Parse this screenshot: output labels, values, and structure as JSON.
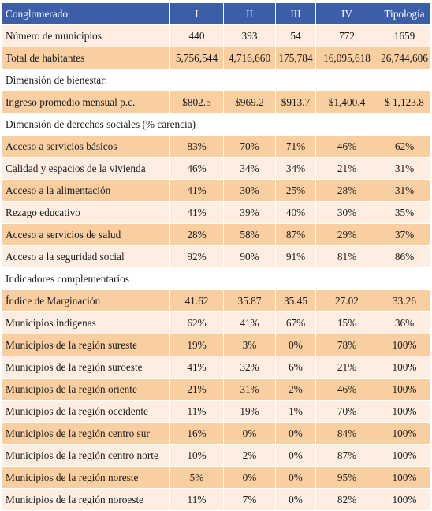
{
  "header": [
    "Conglomerado",
    "I",
    "II",
    "III",
    "IV",
    "Tipología"
  ],
  "rows": [
    {
      "kind": "light",
      "cells": [
        "Número de municipios",
        "440",
        "393",
        "54",
        "772",
        "1659"
      ]
    },
    {
      "kind": "dark",
      "cells": [
        "Total de habitantes",
        "5,756,544",
        "4,716,660",
        "175,784",
        "16,095,618",
        "26,744,606"
      ]
    },
    {
      "kind": "section",
      "cells": [
        "Dimensión de bienestar:"
      ]
    },
    {
      "kind": "dark",
      "cells": [
        "Ingreso promedio mensual p.c.",
        "$802.5",
        "$969.2",
        "$913.7",
        "$1,400.4",
        "$ 1,123.8"
      ]
    },
    {
      "kind": "section",
      "cells": [
        "Dimensión de derechos sociales (% carencia)"
      ]
    },
    {
      "kind": "dark",
      "cells": [
        "Acceso a servicios básicos",
        "83%",
        "70%",
        "71%",
        "46%",
        "62%"
      ]
    },
    {
      "kind": "light",
      "cells": [
        "Calidad y espacios de la vivienda",
        "46%",
        "34%",
        "34%",
        "21%",
        "31%"
      ]
    },
    {
      "kind": "dark",
      "cells": [
        "Acceso a la alimentación",
        "41%",
        "30%",
        "25%",
        "28%",
        "31%"
      ]
    },
    {
      "kind": "light",
      "cells": [
        "Rezago educativo",
        "41%",
        "39%",
        "40%",
        "30%",
        "35%"
      ]
    },
    {
      "kind": "dark",
      "cells": [
        "Acceso a servicios de salud",
        "28%",
        "58%",
        "87%",
        "29%",
        "37%"
      ]
    },
    {
      "kind": "light",
      "cells": [
        "Acceso a la seguridad social",
        "92%",
        "90%",
        "91%",
        "81%",
        "86%"
      ]
    },
    {
      "kind": "section",
      "cells": [
        "Indicadores complementarios"
      ]
    },
    {
      "kind": "dark",
      "cells": [
        "Índice de Marginación",
        "41.62",
        "35.87",
        "35.45",
        "27.02",
        "33.26"
      ]
    },
    {
      "kind": "light",
      "cells": [
        "Municipios indígenas",
        "62%",
        "41%",
        "67%",
        "15%",
        "36%"
      ]
    },
    {
      "kind": "dark",
      "cells": [
        "Municipios de la región sureste",
        "19%",
        "3%",
        "0%",
        "78%",
        "100%"
      ]
    },
    {
      "kind": "light",
      "cells": [
        "Municipios de la región suroeste",
        "41%",
        "32%",
        "6%",
        "21%",
        "100%"
      ]
    },
    {
      "kind": "dark",
      "cells": [
        "Municipios de la región oriente",
        "21%",
        "31%",
        "2%",
        "46%",
        "100%"
      ]
    },
    {
      "kind": "light",
      "cells": [
        "Municipios de la región occidente",
        "11%",
        "19%",
        "1%",
        "70%",
        "100%"
      ]
    },
    {
      "kind": "dark",
      "cells": [
        "Municipios de la región centro sur",
        "16%",
        "0%",
        "0%",
        "84%",
        "100%"
      ]
    },
    {
      "kind": "light",
      "cells": [
        "Municipios de la región centro norte",
        "10%",
        "2%",
        "0%",
        "87%",
        "100%"
      ]
    },
    {
      "kind": "dark",
      "cells": [
        "Municipios de la región noreste",
        "5%",
        "0%",
        "0%",
        "95%",
        "100%"
      ]
    },
    {
      "kind": "light",
      "cells": [
        "Municipios de la región noroeste",
        "11%",
        "7%",
        "0%",
        "82%",
        "100%"
      ]
    }
  ],
  "colors": {
    "header_bg": "#3c5ea8",
    "row_dark": "#f9cfa2",
    "row_light": "#fdeee1"
  }
}
